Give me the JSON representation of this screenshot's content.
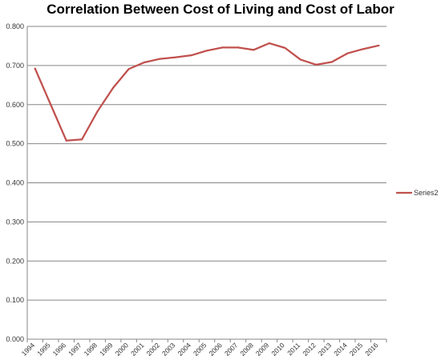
{
  "chart_data": {
    "type": "line",
    "title": "Correlation Between Cost of Living and Cost of Labor",
    "xlabel": "",
    "ylabel": "",
    "x": [
      "1994",
      "1995",
      "1996",
      "1997",
      "1998",
      "1999",
      "2000",
      "2001",
      "2002",
      "2003",
      "2004",
      "2005",
      "2006",
      "2007",
      "2008",
      "2009",
      "2010",
      "2011",
      "2012",
      "2013",
      "2014",
      "2015",
      "2016"
    ],
    "series": [
      {
        "name": "Series2",
        "color": "#c0504d",
        "values": [
          0.692,
          0.6,
          0.508,
          0.511,
          0.583,
          0.643,
          0.691,
          0.708,
          0.717,
          0.721,
          0.726,
          0.738,
          0.746,
          0.746,
          0.74,
          0.757,
          0.745,
          0.715,
          0.702,
          0.709,
          0.731,
          0.742,
          0.751
        ]
      }
    ],
    "y_ticks": [
      "0.000",
      "0.100",
      "0.200",
      "0.300",
      "0.400",
      "0.500",
      "0.600",
      "0.700",
      "0.800"
    ],
    "ylim": [
      0,
      0.8
    ],
    "grid": true,
    "legend_position": "right"
  }
}
